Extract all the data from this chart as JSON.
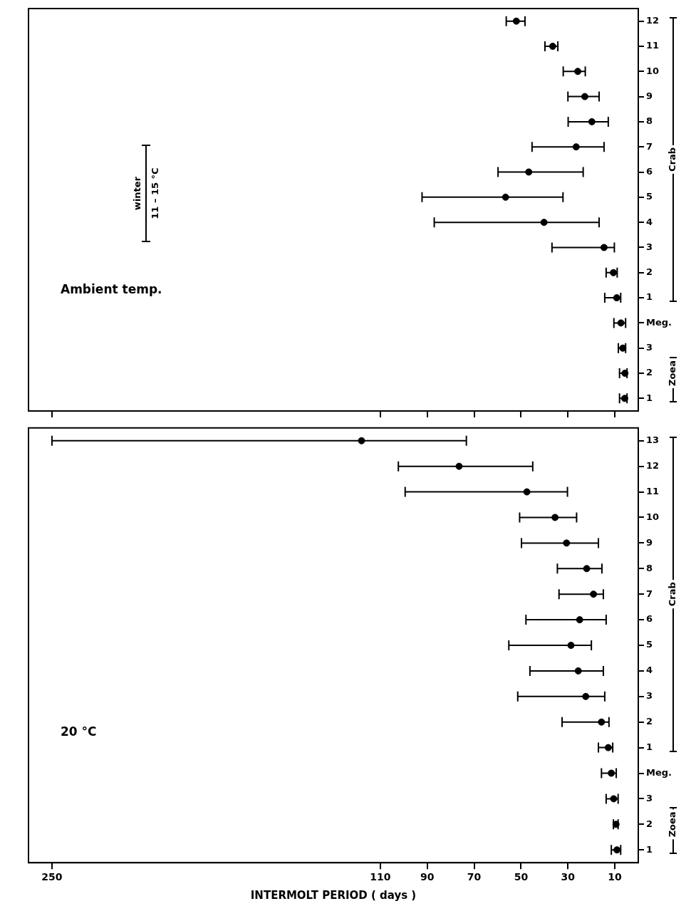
{
  "chart_data": [
    {
      "type": "scatter",
      "title": "Ambient temp.",
      "orientation": "horizontal",
      "color": "#000000",
      "marker": "circle",
      "tick_labels": "y",
      "categories": [
        "12",
        "11",
        "10",
        "9",
        "8",
        "7",
        "6",
        "5",
        "4",
        "3",
        "2",
        "1",
        "Meg.",
        "3",
        "2",
        "1"
      ],
      "values": [
        52,
        36.5,
        25.8,
        22.8,
        19.8,
        26.5,
        46.7,
        56.6,
        40.2,
        14.6,
        10.6,
        9.2,
        7.4,
        6.6,
        5.7,
        5.8
      ],
      "errors": [
        [
          48.3,
          56.3
        ],
        [
          34.3,
          39.8
        ],
        [
          22.6,
          32
        ],
        [
          16.7,
          30
        ],
        [
          12.8,
          29.9
        ],
        [
          14.6,
          45.3
        ],
        [
          23.5,
          59.8
        ],
        [
          32.1,
          92.2
        ],
        [
          16.7,
          87
        ],
        [
          10.2,
          36.8
        ],
        [
          9,
          13.7
        ],
        [
          7.5,
          14.3
        ],
        [
          5.4,
          10.4
        ],
        [
          5.4,
          8.5
        ],
        [
          4.8,
          8
        ],
        [
          4.8,
          8
        ]
      ],
      "xlim": [
        260,
        0
      ],
      "xticks": [
        250,
        110,
        90,
        70,
        50,
        30,
        10
      ],
      "annotations": [
        "Zoea",
        "Crab",
        "winter",
        "11 – 15 °C"
      ]
    },
    {
      "type": "scatter",
      "title": "20 °C",
      "orientation": "horizontal",
      "color": "#000000",
      "marker": "circle",
      "xlabel": "INTERMOLT PERIOD ( days )",
      "categories": [
        "13",
        "12",
        "11",
        "10",
        "9",
        "8",
        "7",
        "6",
        "5",
        "4",
        "3",
        "2",
        "1",
        "Meg.",
        "3",
        "2",
        "1"
      ],
      "values": [
        118,
        76.4,
        47.5,
        35.5,
        30.6,
        22,
        19.1,
        25,
        28.7,
        25.6,
        22.4,
        15.7,
        12.8,
        11.5,
        10.5,
        9.5,
        9.1
      ],
      "errors": [
        [
          73.3,
          250
        ],
        [
          45,
          102.3
        ],
        [
          30.2,
          99.4
        ],
        [
          26.3,
          50.6
        ],
        [
          17,
          49.8
        ],
        [
          15.5,
          34.5
        ],
        [
          14.9,
          33.8
        ],
        [
          13.7,
          47.9
        ],
        [
          20,
          55.2
        ],
        [
          14.9,
          46.2
        ],
        [
          14.3,
          51.4
        ],
        [
          12.5,
          32.5
        ],
        [
          10.9,
          17
        ],
        [
          9.4,
          15.7
        ],
        [
          8.6,
          13.7
        ],
        [
          8.6,
          10.6
        ],
        [
          7.5,
          11.5
        ]
      ],
      "xlim": [
        260,
        0
      ],
      "xticks": [
        250,
        110,
        90,
        70,
        50,
        30,
        10
      ],
      "annotations": [
        "Zoea",
        "Crab"
      ]
    }
  ]
}
